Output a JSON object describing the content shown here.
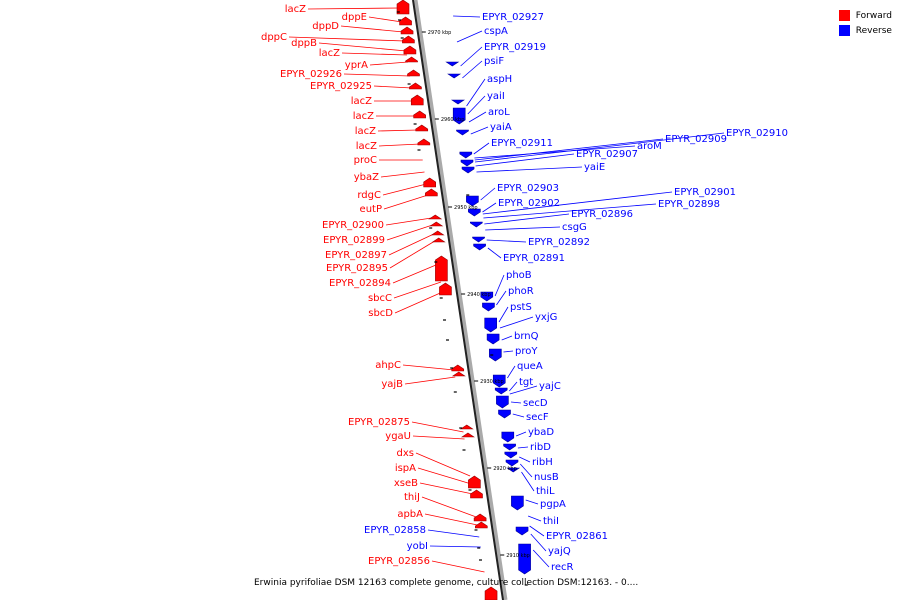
{
  "legend": {
    "forward": {
      "label": "Forward",
      "color": "#ff0000"
    },
    "reverse": {
      "label": "Reverse",
      "color": "#0000ff"
    }
  },
  "caption": "Erwinia pyrifoliae DSM 12163 complete genome, culture collection DSM:12163. - 0....",
  "ticks": [
    "2970 kbp",
    "2960 kbp",
    "2950 kbp",
    "2940 kbp",
    "2930 kbp",
    "2920 kbp",
    "2910 kbp"
  ],
  "forward_labels": [
    "lacZ",
    "dppE",
    "dppD",
    "dppC",
    "dppB",
    "lacZ",
    "yprA",
    "EPYR_02926",
    "EPYR_02925",
    "lacZ",
    "lacZ",
    "lacZ",
    "lacZ",
    "proC",
    "ybaZ",
    "rdgC",
    "eutP",
    "EPYR_02900",
    "EPYR_02899",
    "EPYR_02897",
    "EPYR_02895",
    "EPYR_02894",
    "sbcC",
    "sbcD",
    "ahpC",
    "yajB",
    "EPYR_02875",
    "ygaU",
    "dxs",
    "ispA",
    "xseB",
    "thiJ",
    "apbA",
    "EPYR_02858",
    "yobI",
    "EPYR_02856"
  ],
  "reverse_labels": [
    "EPYR_02927",
    "cspA",
    "EPYR_02919",
    "psiF",
    "aspH",
    "yaiI",
    "aroL",
    "yaiA",
    "EPYR_02911",
    "aroM",
    "EPYR_02909",
    "EPYR_02910",
    "EPYR_02907",
    "yaiE",
    "EPYR_02903",
    "EPYR_02902",
    "EPYR_02901",
    "EPYR_02898",
    "EPYR_02896",
    "csgG",
    "EPYR_02892",
    "EPYR_02891",
    "phoB",
    "phoR",
    "pstS",
    "yxjG",
    "brnQ",
    "proY",
    "queA",
    "tgt",
    "yajC",
    "secD",
    "secF",
    "ybaD",
    "ribD",
    "ribH",
    "nusB",
    "thiL",
    "pgpA",
    "thiI",
    "EPYR_02861",
    "yajQ",
    "recR"
  ]
}
